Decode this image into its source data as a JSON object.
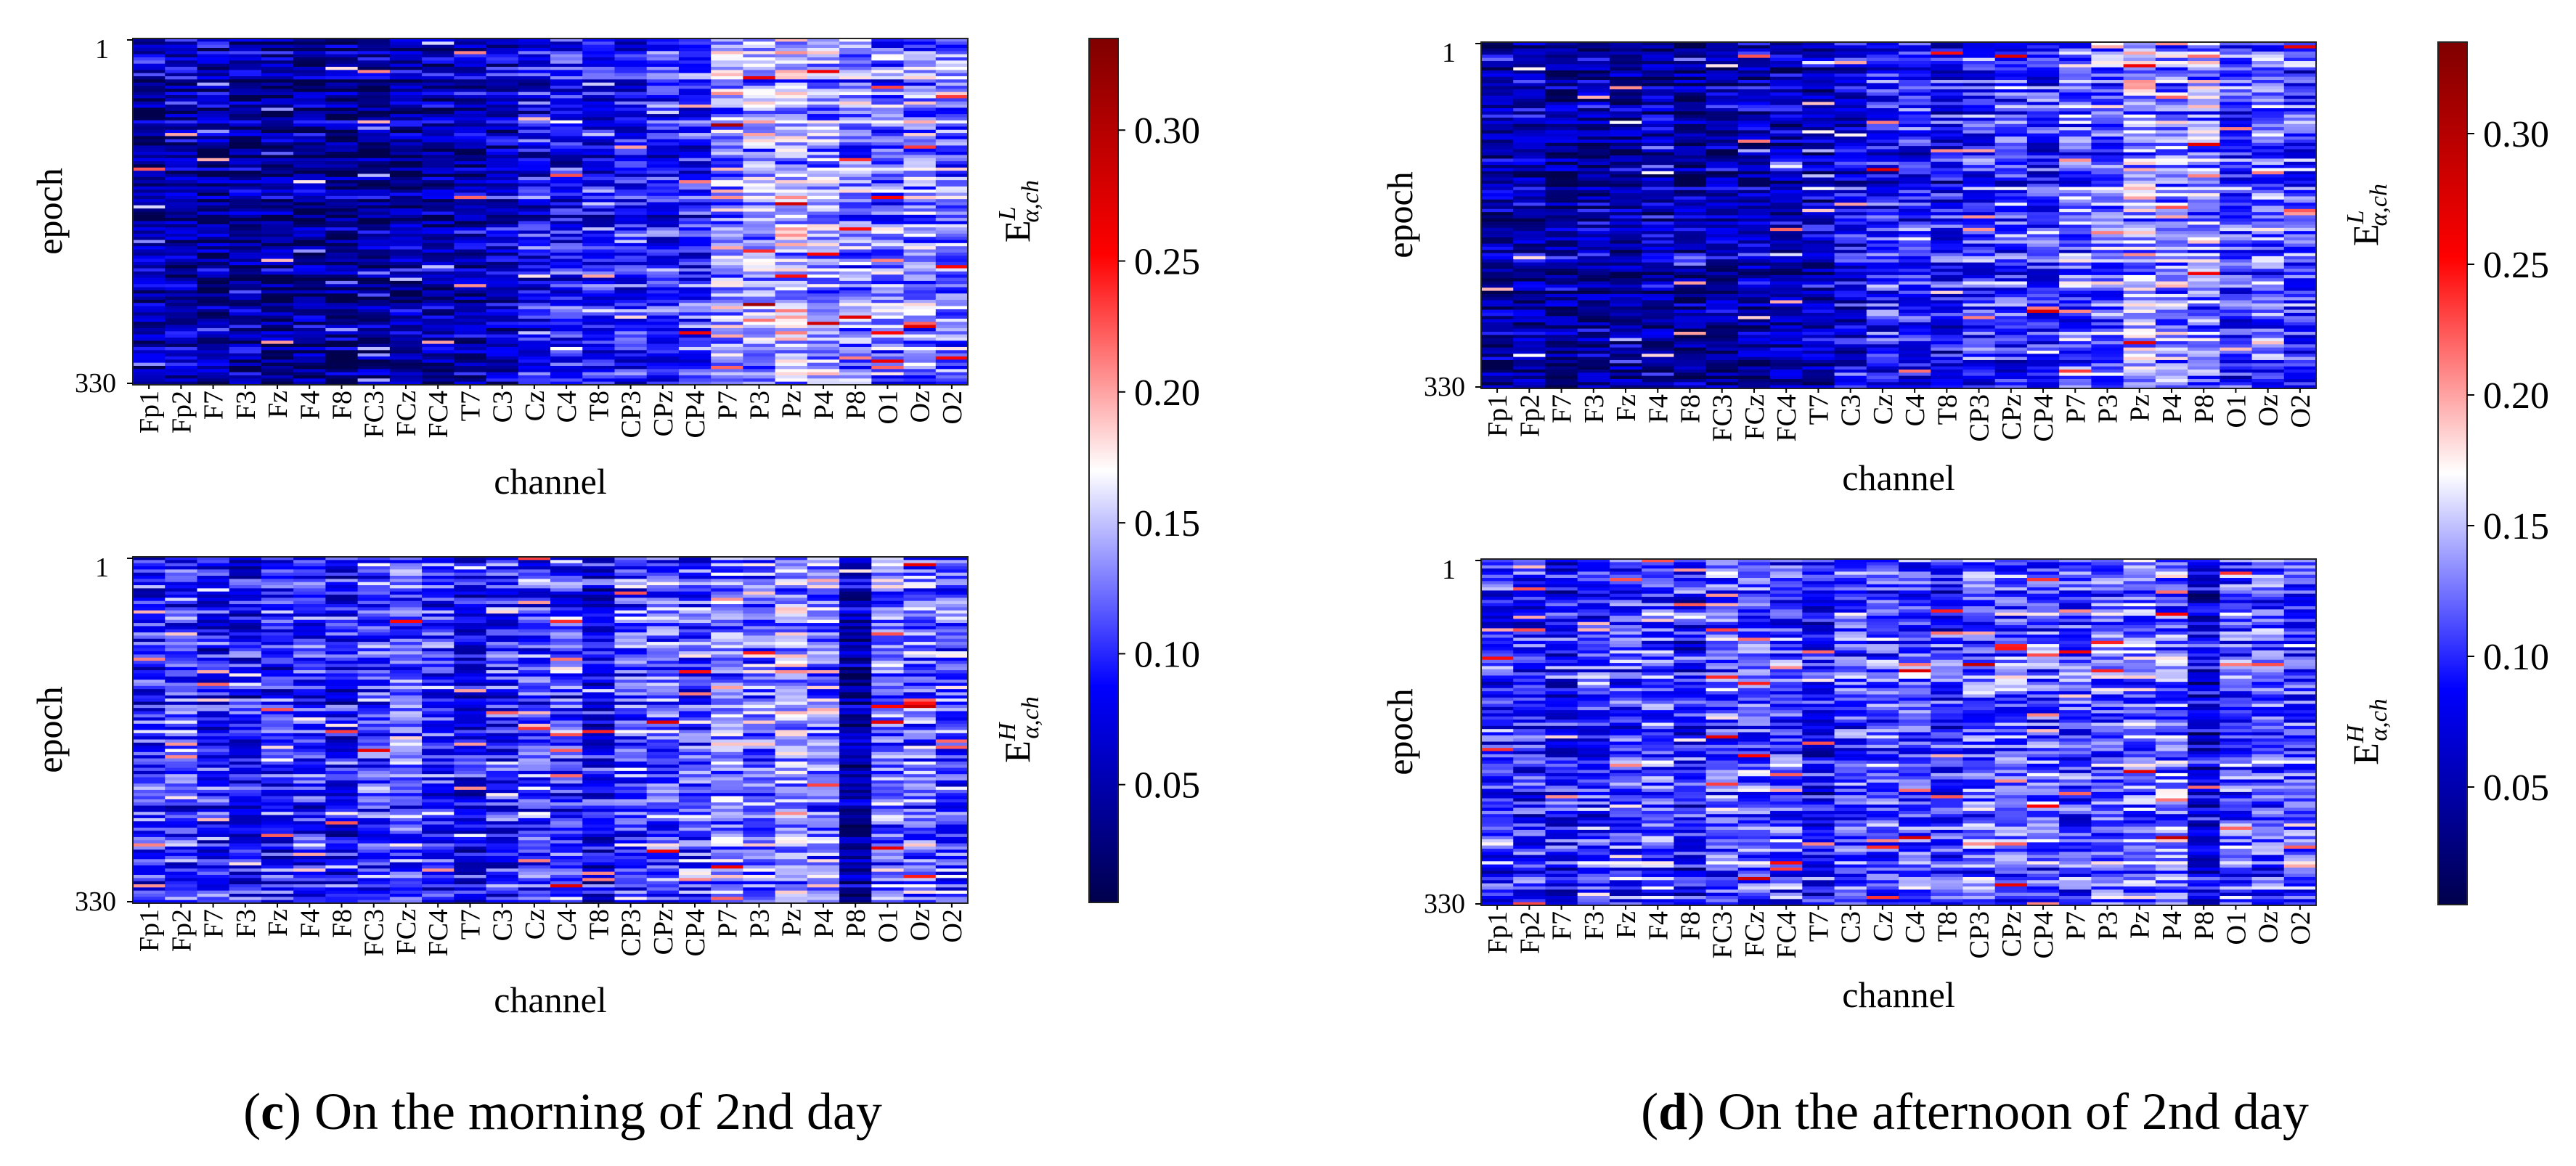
{
  "colormap": {
    "name": "seismic",
    "stops": [
      "#00004c",
      "#0000ff",
      "#ffffff",
      "#ff0000",
      "#7f0000"
    ],
    "range": [
      0.0,
      0.335
    ]
  },
  "chart_data": [
    {
      "type": "heatmap",
      "panel_id": "c",
      "caption_letter": "c",
      "caption_text": " On the morning of 2nd day",
      "ylabel": "epoch",
      "xlabel": "channel",
      "y_ticks": [
        "1",
        "330"
      ],
      "n_epochs": 330,
      "channels": [
        "Fp1",
        "Fp2",
        "F7",
        "F3",
        "Fz",
        "F4",
        "F8",
        "FC3",
        "FCz",
        "FC4",
        "T7",
        "C3",
        "Cz",
        "C4",
        "T8",
        "CP3",
        "CPz",
        "CP4",
        "P7",
        "P3",
        "Pz",
        "P4",
        "P8",
        "O1",
        "Oz",
        "O2"
      ],
      "colorbar": {
        "ticks": [
          "0.05",
          "0.10",
          "0.15",
          "0.20",
          "0.25",
          "0.30"
        ],
        "tick_values": [
          0.05,
          0.1,
          0.15,
          0.2,
          0.25,
          0.3
        ],
        "range": [
          0.005,
          0.335
        ]
      },
      "subplots": [
        {
          "label_main": "E",
          "label_sup": "L",
          "label_sub": "α,ch",
          "channel_means": [
            0.045,
            0.055,
            0.04,
            0.042,
            0.038,
            0.04,
            0.035,
            0.04,
            0.045,
            0.045,
            0.05,
            0.06,
            0.08,
            0.085,
            0.085,
            0.09,
            0.095,
            0.09,
            0.14,
            0.135,
            0.15,
            0.14,
            0.13,
            0.12,
            0.13,
            0.125
          ]
        },
        {
          "label_main": "E",
          "label_sup": "H",
          "label_sub": "α,ch",
          "channel_means": [
            0.095,
            0.1,
            0.085,
            0.085,
            0.09,
            0.095,
            0.085,
            0.105,
            0.11,
            0.1,
            0.075,
            0.095,
            0.105,
            0.1,
            0.08,
            0.11,
            0.115,
            0.11,
            0.13,
            0.12,
            0.14,
            0.13,
            0.045,
            0.12,
            0.12,
            0.11
          ]
        }
      ]
    },
    {
      "type": "heatmap",
      "panel_id": "d",
      "caption_letter": "d",
      "caption_text": " On the afternoon of 2nd day",
      "ylabel": "epoch",
      "xlabel": "channel",
      "y_ticks": [
        "1",
        "330"
      ],
      "n_epochs": 330,
      "channels": [
        "Fp1",
        "Fp2",
        "F7",
        "F3",
        "Fz",
        "F4",
        "F8",
        "FC3",
        "FCz",
        "FC4",
        "T7",
        "C3",
        "Cz",
        "C4",
        "T8",
        "CP3",
        "CPz",
        "CP4",
        "P7",
        "P3",
        "Pz",
        "P4",
        "P8",
        "O1",
        "Oz",
        "O2"
      ],
      "colorbar": {
        "ticks": [
          "0.05",
          "0.10",
          "0.15",
          "0.20",
          "0.25",
          "0.30"
        ],
        "tick_values": [
          0.05,
          0.1,
          0.15,
          0.2,
          0.25,
          0.3
        ],
        "range": [
          0.005,
          0.335
        ]
      },
      "subplots": [
        {
          "label_main": "E",
          "label_sup": "L",
          "label_sub": "α,ch",
          "channel_means": [
            0.04,
            0.045,
            0.035,
            0.045,
            0.04,
            0.045,
            0.035,
            0.045,
            0.055,
            0.05,
            0.05,
            0.07,
            0.09,
            0.09,
            0.08,
            0.095,
            0.1,
            0.09,
            0.11,
            0.12,
            0.14,
            0.13,
            0.13,
            0.1,
            0.11,
            0.1
          ]
        },
        {
          "label_main": "E",
          "label_sup": "H",
          "label_sub": "α,ch",
          "channel_means": [
            0.1,
            0.095,
            0.085,
            0.1,
            0.105,
            0.11,
            0.085,
            0.115,
            0.115,
            0.11,
            0.085,
            0.11,
            0.115,
            0.115,
            0.1,
            0.12,
            0.12,
            0.115,
            0.11,
            0.12,
            0.125,
            0.125,
            0.07,
            0.11,
            0.115,
            0.11
          ]
        }
      ]
    }
  ]
}
